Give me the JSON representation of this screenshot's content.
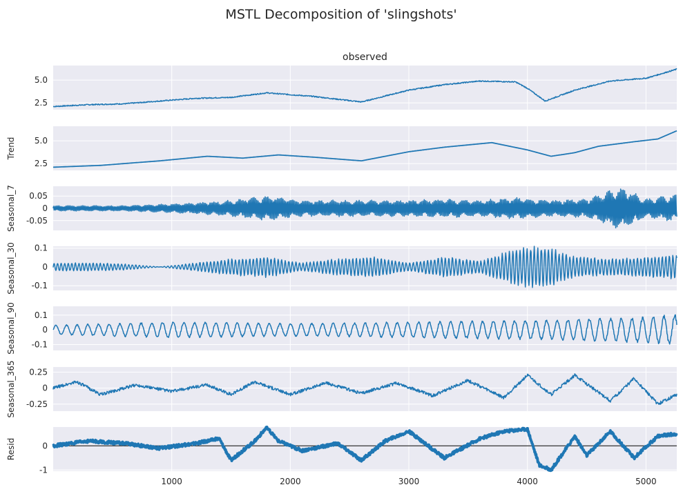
{
  "title": "MSTL Decomposition of 'slingshots'",
  "chart_data": [
    {
      "type": "line",
      "panel": "observed",
      "title": "observed",
      "ylabel": "",
      "yticks": [
        2.5,
        5.0
      ],
      "ylim": [
        1.75,
        6.6
      ],
      "x": [
        0,
        300,
        600,
        900,
        1200,
        1500,
        1800,
        2000,
        2200,
        2600,
        3000,
        3300,
        3600,
        3900,
        4000,
        4150,
        4400,
        4700,
        5000,
        5260
      ],
      "y": [
        2.1,
        2.3,
        2.4,
        2.7,
        3.0,
        3.1,
        3.6,
        3.4,
        3.2,
        2.6,
        3.9,
        4.5,
        4.9,
        4.8,
        4.1,
        2.7,
        3.9,
        4.9,
        5.2,
        6.2
      ]
    },
    {
      "type": "line",
      "panel": "trend",
      "title": "",
      "ylabel": "Trend",
      "yticks": [
        2.5,
        5.0
      ],
      "ylim": [
        1.75,
        6.6
      ],
      "x": [
        0,
        400,
        900,
        1300,
        1600,
        1900,
        2200,
        2600,
        3000,
        3300,
        3700,
        4000,
        4200,
        4400,
        4600,
        4900,
        5100,
        5260
      ],
      "y": [
        2.1,
        2.3,
        2.8,
        3.3,
        3.1,
        3.45,
        3.2,
        2.8,
        3.8,
        4.3,
        4.8,
        4.0,
        3.3,
        3.7,
        4.4,
        4.9,
        5.2,
        6.1
      ]
    },
    {
      "type": "line",
      "panel": "seasonal_7",
      "title": "",
      "ylabel": "Seasonal_7",
      "yticks": [
        0.05,
        0.0,
        -0.05
      ],
      "ylim": [
        -0.09,
        0.09
      ],
      "x": [
        0,
        600,
        1200,
        1500,
        1800,
        2100,
        2400,
        2700,
        3000,
        3300,
        3600,
        3900,
        4200,
        4500,
        4800,
        5000,
        5260
      ],
      "amplitude": [
        0.01,
        0.01,
        0.02,
        0.03,
        0.045,
        0.03,
        0.03,
        0.03,
        0.03,
        0.035,
        0.03,
        0.04,
        0.03,
        0.035,
        0.08,
        0.035,
        0.05
      ]
    },
    {
      "type": "line",
      "panel": "seasonal_30",
      "title": "",
      "ylabel": "Seasonal_30",
      "yticks": [
        0.1,
        0.0,
        -0.1
      ],
      "ylim": [
        -0.125,
        0.11
      ],
      "x": [
        0,
        300,
        600,
        900,
        1200,
        1500,
        1800,
        2100,
        2400,
        2700,
        3000,
        3300,
        3600,
        3800,
        4000,
        4150,
        4400,
        4700,
        5000,
        5260
      ],
      "amplitude": [
        0.02,
        0.02,
        0.015,
        0.0,
        0.02,
        0.04,
        0.05,
        0.02,
        0.04,
        0.05,
        0.02,
        0.05,
        0.03,
        0.07,
        0.1,
        0.1,
        0.05,
        0.04,
        0.05,
        0.06
      ]
    },
    {
      "type": "line",
      "panel": "seasonal_90",
      "title": "",
      "ylabel": "Seasonal_90",
      "yticks": [
        0.1,
        0.0,
        -0.1
      ],
      "ylim": [
        -0.14,
        0.16
      ],
      "x": [
        0,
        1000,
        2000,
        3000,
        4000,
        5000,
        5260
      ],
      "amplitude": [
        0.03,
        0.05,
        0.04,
        0.05,
        0.06,
        0.08,
        0.1
      ]
    },
    {
      "type": "line",
      "panel": "seasonal_365",
      "title": "",
      "ylabel": "Seasonal_365",
      "yticks": [
        0.25,
        0.0,
        -0.25
      ],
      "ylim": [
        -0.36,
        0.33
      ],
      "x": [
        0,
        200,
        400,
        700,
        1000,
        1300,
        1500,
        1700,
        2000,
        2300,
        2600,
        2900,
        3200,
        3500,
        3800,
        4000,
        4200,
        4400,
        4700,
        4900,
        5100,
        5260
      ],
      "y": [
        0.0,
        0.1,
        -0.1,
        0.05,
        -0.05,
        0.05,
        -0.1,
        0.1,
        -0.1,
        0.08,
        -0.08,
        0.08,
        -0.12,
        0.12,
        -0.15,
        0.2,
        -0.1,
        0.2,
        -0.2,
        0.15,
        -0.25,
        -0.1
      ]
    },
    {
      "type": "line",
      "panel": "resid",
      "title": "",
      "ylabel": "Resid",
      "yticks": [
        0,
        -1
      ],
      "ylim": [
        -1.05,
        0.78
      ],
      "zero_line": true,
      "x": [
        0,
        300,
        600,
        900,
        1200,
        1400,
        1500,
        1700,
        1800,
        1900,
        2100,
        2400,
        2600,
        2800,
        3000,
        3300,
        3600,
        3800,
        4000,
        4100,
        4200,
        4400,
        4500,
        4700,
        4900,
        5100,
        5260
      ],
      "y": [
        0.0,
        0.2,
        0.1,
        -0.1,
        0.1,
        0.3,
        -0.6,
        0.2,
        0.75,
        0.2,
        -0.2,
        0.1,
        -0.6,
        0.2,
        0.6,
        -0.5,
        0.3,
        0.6,
        0.7,
        -0.8,
        -1.0,
        0.4,
        -0.4,
        0.6,
        -0.5,
        0.4,
        0.5
      ]
    }
  ],
  "xaxis": {
    "ticks": [
      1000,
      2000,
      3000,
      4000,
      5000
    ],
    "xlim": [
      0,
      5260
    ]
  },
  "colors": {
    "line": "#1f77b4",
    "panel_bg": "#eaeaf2",
    "grid": "#ffffff",
    "zero_line": "#000000"
  }
}
